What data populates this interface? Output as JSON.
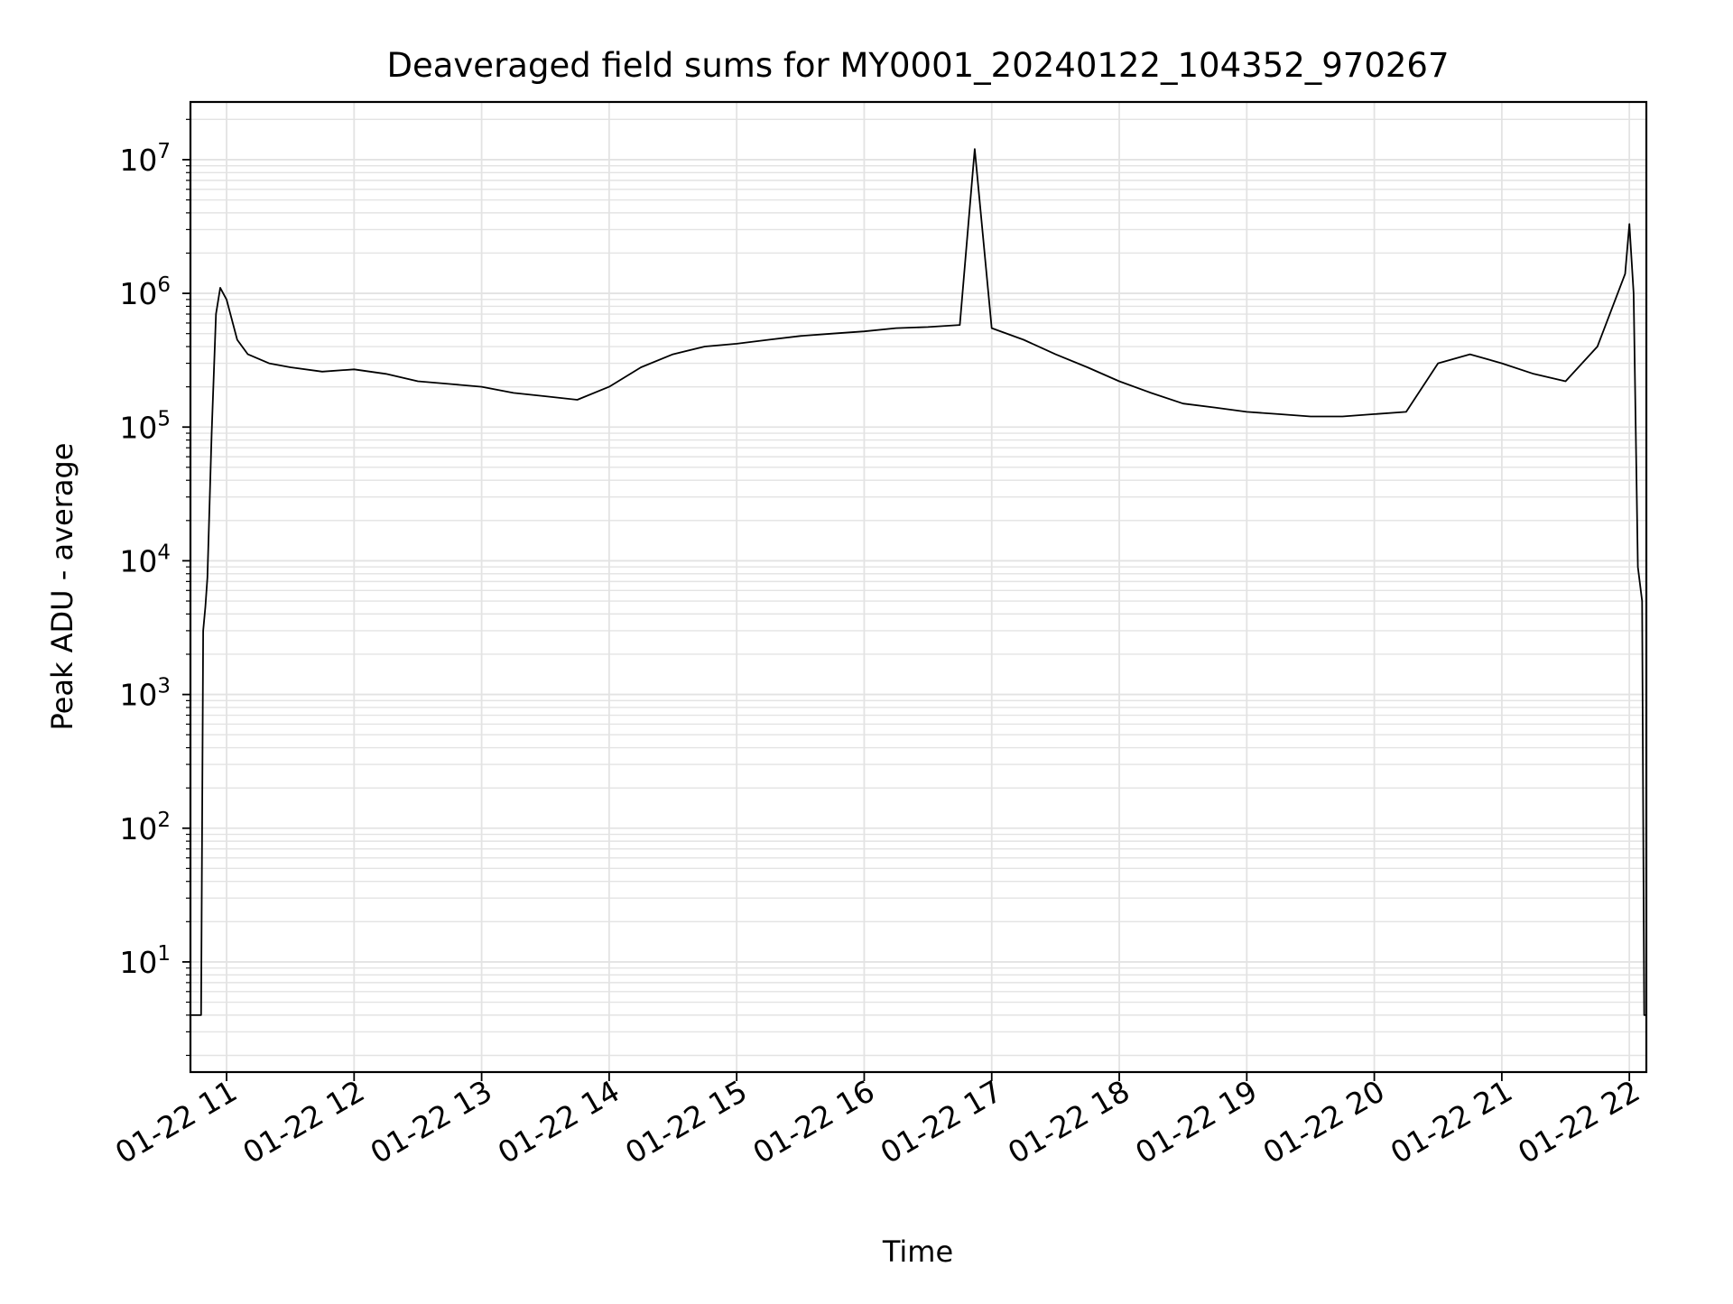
{
  "chart_data": {
    "type": "line",
    "title": "Deaveraged field sums for MY0001_20240122_104352_970267",
    "xlabel": "Time",
    "ylabel": "Peak ADU - average",
    "yscale": "log",
    "ylim": [
      1.5,
      27000000
    ],
    "xlim": [
      "2024-01-22 10:43",
      "2024-01-22 22:08"
    ],
    "grid": true,
    "color": "#000000",
    "x_ticks": [
      {
        "time": "2024-01-22 11:00",
        "label": "01-22 11"
      },
      {
        "time": "2024-01-22 12:00",
        "label": "01-22 12"
      },
      {
        "time": "2024-01-22 13:00",
        "label": "01-22 13"
      },
      {
        "time": "2024-01-22 14:00",
        "label": "01-22 14"
      },
      {
        "time": "2024-01-22 15:00",
        "label": "01-22 15"
      },
      {
        "time": "2024-01-22 16:00",
        "label": "01-22 16"
      },
      {
        "time": "2024-01-22 17:00",
        "label": "01-22 17"
      },
      {
        "time": "2024-01-22 18:00",
        "label": "01-22 18"
      },
      {
        "time": "2024-01-22 19:00",
        "label": "01-22 19"
      },
      {
        "time": "2024-01-22 20:00",
        "label": "01-22 20"
      },
      {
        "time": "2024-01-22 21:00",
        "label": "01-22 21"
      },
      {
        "time": "2024-01-22 22:00",
        "label": "01-22 22"
      }
    ],
    "y_ticks": [
      {
        "value": 10,
        "base": "10",
        "exp": "1"
      },
      {
        "value": 100,
        "base": "10",
        "exp": "2"
      },
      {
        "value": 1000,
        "base": "10",
        "exp": "3"
      },
      {
        "value": 10000,
        "base": "10",
        "exp": "4"
      },
      {
        "value": 100000,
        "base": "10",
        "exp": "5"
      },
      {
        "value": 1000000,
        "base": "10",
        "exp": "6"
      },
      {
        "value": 10000000,
        "base": "10",
        "exp": "7"
      }
    ],
    "series": [
      {
        "x": [
          "2024-01-22 10:43",
          "2024-01-22 10:48",
          "2024-01-22 10:49",
          "2024-01-22 10:50",
          "2024-01-22 10:51",
          "2024-01-22 10:53",
          "2024-01-22 10:55",
          "2024-01-22 10:57",
          "2024-01-22 11:00",
          "2024-01-22 11:05",
          "2024-01-22 11:10",
          "2024-01-22 11:20",
          "2024-01-22 11:30",
          "2024-01-22 11:45",
          "2024-01-22 12:00",
          "2024-01-22 12:15",
          "2024-01-22 12:30",
          "2024-01-22 12:45",
          "2024-01-22 13:00",
          "2024-01-22 13:15",
          "2024-01-22 13:30",
          "2024-01-22 13:45",
          "2024-01-22 14:00",
          "2024-01-22 14:15",
          "2024-01-22 14:30",
          "2024-01-22 14:45",
          "2024-01-22 15:00",
          "2024-01-22 15:15",
          "2024-01-22 15:30",
          "2024-01-22 15:45",
          "2024-01-22 16:00",
          "2024-01-22 16:15",
          "2024-01-22 16:30",
          "2024-01-22 16:45",
          "2024-01-22 16:52",
          "2024-01-22 17:00",
          "2024-01-22 17:15",
          "2024-01-22 17:30",
          "2024-01-22 17:45",
          "2024-01-22 18:00",
          "2024-01-22 18:15",
          "2024-01-22 18:30",
          "2024-01-22 18:45",
          "2024-01-22 19:00",
          "2024-01-22 19:15",
          "2024-01-22 19:30",
          "2024-01-22 19:45",
          "2024-01-22 20:00",
          "2024-01-22 20:15",
          "2024-01-22 20:30",
          "2024-01-22 20:45",
          "2024-01-22 21:00",
          "2024-01-22 21:15",
          "2024-01-22 21:30",
          "2024-01-22 21:45",
          "2024-01-22 21:58",
          "2024-01-22 22:00",
          "2024-01-22 22:02",
          "2024-01-22 22:04",
          "2024-01-22 22:06",
          "2024-01-22 22:07",
          "2024-01-22 22:08"
        ],
        "y": [
          4,
          4,
          3000,
          4500,
          7500,
          90000,
          700000,
          1100000,
          900000,
          450000,
          350000,
          300000,
          280000,
          260000,
          270000,
          250000,
          220000,
          210000,
          200000,
          180000,
          170000,
          160000,
          200000,
          280000,
          350000,
          400000,
          420000,
          450000,
          480000,
          500000,
          520000,
          550000,
          560000,
          580000,
          12000000,
          550000,
          450000,
          350000,
          280000,
          220000,
          180000,
          150000,
          140000,
          130000,
          125000,
          120000,
          120000,
          125000,
          130000,
          300000,
          350000,
          300000,
          250000,
          220000,
          400000,
          1400000,
          3300000,
          1000000,
          9000,
          5000,
          4,
          4
        ]
      }
    ]
  }
}
